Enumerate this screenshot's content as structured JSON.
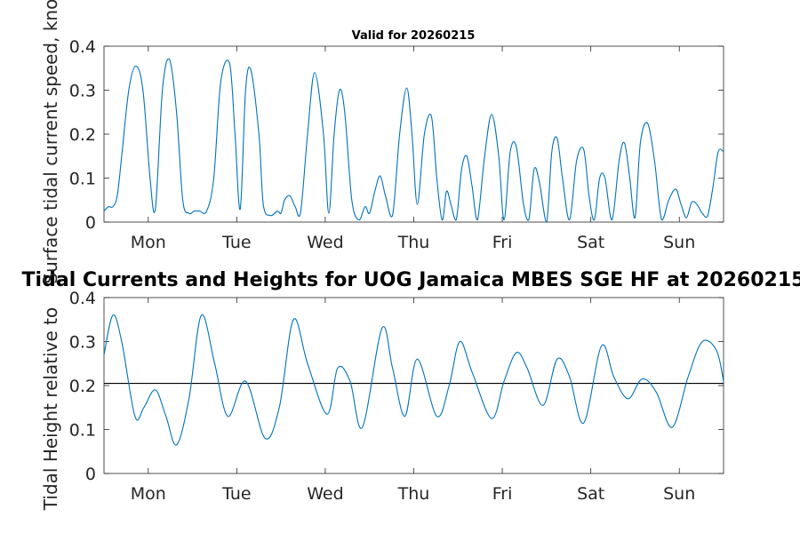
{
  "chart_data": [
    {
      "type": "line",
      "title": "Valid for 20260215",
      "ylabel": "Surface tidal current speed, knots",
      "xlim": [
        0,
        7
      ],
      "ylim": [
        0,
        0.4
      ],
      "yticks": [
        0,
        0.1,
        0.2,
        0.3,
        0.4
      ],
      "ytick_labels": [
        "0",
        "0.1",
        "0.2",
        "0.3",
        "0.4"
      ],
      "xticks": [
        0.5,
        1.5,
        2.5,
        3.5,
        4.5,
        5.5,
        6.5
      ],
      "xtick_labels": [
        "Mon",
        "Tue",
        "Wed",
        "Thu",
        "Fri",
        "Sat",
        "Sun"
      ],
      "grid": false,
      "line_color": "#0072bd",
      "x": [
        0,
        0.05,
        0.1,
        0.15,
        0.2,
        0.28,
        0.36,
        0.44,
        0.52,
        0.58,
        0.66,
        0.74,
        0.82,
        0.89,
        0.96,
        1.02,
        1.08,
        1.16,
        1.24,
        1.32,
        1.42,
        1.48,
        1.54,
        1.6,
        1.66,
        1.75,
        1.8,
        1.88,
        1.96,
        2.0,
        2.04,
        2.1,
        2.16,
        2.22,
        2.3,
        2.38,
        2.48,
        2.54,
        2.6,
        2.66,
        2.72,
        2.8,
        2.88,
        2.95,
        3.0,
        3.06,
        3.12,
        3.18,
        3.26,
        3.34,
        3.42,
        3.48,
        3.54,
        3.62,
        3.7,
        3.76,
        3.82,
        3.87,
        3.92,
        3.98,
        4.04,
        4.1,
        4.16,
        4.22,
        4.3,
        4.38,
        4.46,
        4.52,
        4.59,
        4.66,
        4.74,
        4.8,
        4.86,
        4.92,
        5.0,
        5.06,
        5.12,
        5.18,
        5.26,
        5.34,
        5.42,
        5.48,
        5.54,
        5.6,
        5.66,
        5.74,
        5.82,
        5.88,
        5.94,
        6.0,
        6.06,
        6.14,
        6.22,
        6.3,
        6.38,
        6.46,
        6.52,
        6.58,
        6.64,
        6.7,
        6.76,
        6.82,
        6.88,
        6.94,
        7.0
      ],
      "values": [
        0.025,
        0.035,
        0.035,
        0.06,
        0.15,
        0.3,
        0.355,
        0.3,
        0.1,
        0.03,
        0.3,
        0.37,
        0.25,
        0.05,
        0.02,
        0.025,
        0.025,
        0.025,
        0.1,
        0.32,
        0.36,
        0.2,
        0.03,
        0.3,
        0.345,
        0.2,
        0.04,
        0.015,
        0.025,
        0.02,
        0.05,
        0.06,
        0.035,
        0.02,
        0.2,
        0.34,
        0.2,
        0.02,
        0.2,
        0.3,
        0.25,
        0.05,
        0.005,
        0.035,
        0.02,
        0.07,
        0.105,
        0.06,
        0.015,
        0.2,
        0.305,
        0.2,
        0.04,
        0.2,
        0.24,
        0.1,
        0.005,
        0.07,
        0.04,
        0.005,
        0.12,
        0.15,
        0.08,
        0.005,
        0.15,
        0.245,
        0.15,
        0.005,
        0.16,
        0.17,
        0.04,
        0.005,
        0.12,
        0.09,
        0.0,
        0.16,
        0.19,
        0.1,
        0.005,
        0.14,
        0.165,
        0.06,
        0.005,
        0.1,
        0.1,
        0.005,
        0.14,
        0.18,
        0.1,
        0.01,
        0.18,
        0.225,
        0.14,
        0.005,
        0.05,
        0.075,
        0.04,
        0.01,
        0.045,
        0.04,
        0.02,
        0.015,
        0.08,
        0.16,
        0.16
      ]
    },
    {
      "type": "line",
      "title": "Tidal Currents and Heights for UOG Jamaica MBES SGE HF at 20260215",
      "ylabel": "Tidal Height relative to",
      "xlim": [
        0,
        7
      ],
      "ylim": [
        0,
        0.4
      ],
      "yticks": [
        0,
        0.1,
        0.2,
        0.3,
        0.4
      ],
      "ytick_labels": [
        "0",
        "0.1",
        "0.2",
        "0.3",
        "0.4"
      ],
      "xticks": [
        0.5,
        1.5,
        2.5,
        3.5,
        4.5,
        5.5,
        6.5
      ],
      "xtick_labels": [
        "Mon",
        "Tue",
        "Wed",
        "Thu",
        "Fri",
        "Sat",
        "Sun"
      ],
      "grid": false,
      "line_color": "#0072bd",
      "reference_line": 0.205,
      "reference_line_color": "#000000",
      "x": [
        0,
        0.1,
        0.2,
        0.35,
        0.45,
        0.58,
        0.7,
        0.82,
        0.96,
        1.1,
        1.25,
        1.4,
        1.6,
        1.82,
        1.98,
        2.14,
        2.3,
        2.52,
        2.64,
        2.78,
        2.92,
        3.14,
        3.26,
        3.4,
        3.54,
        3.76,
        3.9,
        4.02,
        4.16,
        4.38,
        4.52,
        4.66,
        4.78,
        4.96,
        5.12,
        5.26,
        5.42,
        5.62,
        5.76,
        5.92,
        6.08,
        6.24,
        6.42,
        6.6,
        6.76,
        6.92,
        7.0
      ],
      "values": [
        0.27,
        0.36,
        0.3,
        0.13,
        0.15,
        0.19,
        0.13,
        0.065,
        0.17,
        0.36,
        0.25,
        0.13,
        0.21,
        0.08,
        0.15,
        0.35,
        0.25,
        0.135,
        0.24,
        0.21,
        0.105,
        0.33,
        0.24,
        0.13,
        0.26,
        0.13,
        0.2,
        0.3,
        0.23,
        0.125,
        0.21,
        0.275,
        0.24,
        0.155,
        0.26,
        0.22,
        0.115,
        0.29,
        0.22,
        0.17,
        0.215,
        0.185,
        0.105,
        0.22,
        0.3,
        0.28,
        0.21
      ]
    }
  ]
}
